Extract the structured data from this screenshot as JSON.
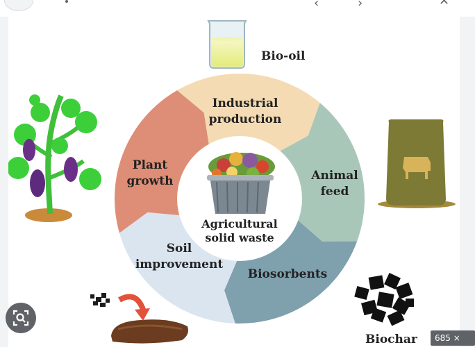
{
  "diagram": {
    "center_label": [
      "Agricultural",
      "solid waste"
    ],
    "segments": [
      {
        "label": [
          "Industrial",
          "production"
        ],
        "color": "#f5dbb3"
      },
      {
        "label": [
          "Animal",
          "feed"
        ],
        "color": "#a9c7b8"
      },
      {
        "label": [
          "Biosorbents"
        ],
        "color": "#7fa0ad"
      },
      {
        "label": [
          "Soil",
          "improvement"
        ],
        "color": "#dbe5f0"
      },
      {
        "label": [
          "Plant",
          "growth"
        ],
        "color": "#de8e76"
      }
    ],
    "products": {
      "bio_oil": "Bio-oil",
      "biochar": "Biochar"
    }
  },
  "overlay": {
    "image_size": "685 × 498",
    "lens_icon": "visual-search-icon"
  },
  "toolbar": {
    "icons": [
      "share-icon",
      "expand-icon",
      "more-icon",
      "close-icon"
    ]
  }
}
